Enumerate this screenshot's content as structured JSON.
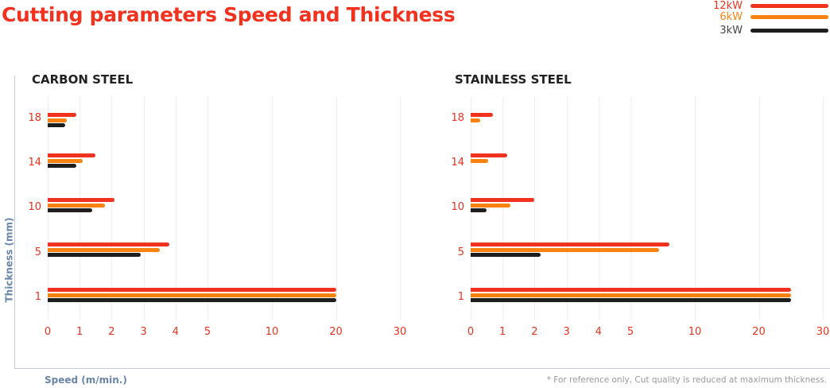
{
  "chart_data": [
    {
      "type": "bar",
      "orientation": "horizontal",
      "title": "CARBON STEEL",
      "xlabel": "Speed (m/min.)",
      "ylabel": "Thickness (mm)",
      "categories": [
        "18",
        "14",
        "10",
        "5",
        "1"
      ],
      "x_ticks": [
        0,
        1,
        2,
        3,
        4,
        5,
        10,
        20,
        30
      ],
      "xlim": [
        0,
        30
      ],
      "x_scale": "piecewise (0-5 expanded)",
      "series": [
        {
          "name": "12kW",
          "color": "#f0321e",
          "values": [
            0.9,
            1.5,
            2.1,
            3.8,
            20
          ]
        },
        {
          "name": "6kW",
          "color": "#f7820f",
          "values": [
            0.6,
            1.1,
            1.8,
            3.5,
            20
          ]
        },
        {
          "name": "3kW",
          "color": "#1e1e1e",
          "values": [
            0.55,
            0.9,
            1.4,
            2.9,
            20
          ]
        }
      ]
    },
    {
      "type": "bar",
      "orientation": "horizontal",
      "title": "STAINLESS STEEL",
      "xlabel": "Speed (m/min.)",
      "ylabel": "Thickness (mm)",
      "categories": [
        "18",
        "14",
        "10",
        "5",
        "1"
      ],
      "x_ticks": [
        0,
        1,
        2,
        3,
        4,
        5,
        10,
        20,
        30
      ],
      "xlim": [
        0,
        30
      ],
      "x_scale": "piecewise (0-5 expanded)",
      "series": [
        {
          "name": "12kW",
          "color": "#f0321e",
          "values": [
            0.7,
            1.15,
            2.0,
            8.0,
            25
          ]
        },
        {
          "name": "6kW",
          "color": "#f7820f",
          "values": [
            0.3,
            0.55,
            1.25,
            7.2,
            25
          ]
        },
        {
          "name": "3kW",
          "color": "#1e1e1e",
          "values": [
            0,
            0,
            0.5,
            2.2,
            25
          ]
        }
      ]
    }
  ],
  "page": {
    "title": "Cutting parameters Speed and Thickness",
    "ylabel": "Thickness (mm)",
    "xlabel": "Speed (m/min.)",
    "note": "* For reference only, Cut quality is reduced at maximum thickness."
  }
}
